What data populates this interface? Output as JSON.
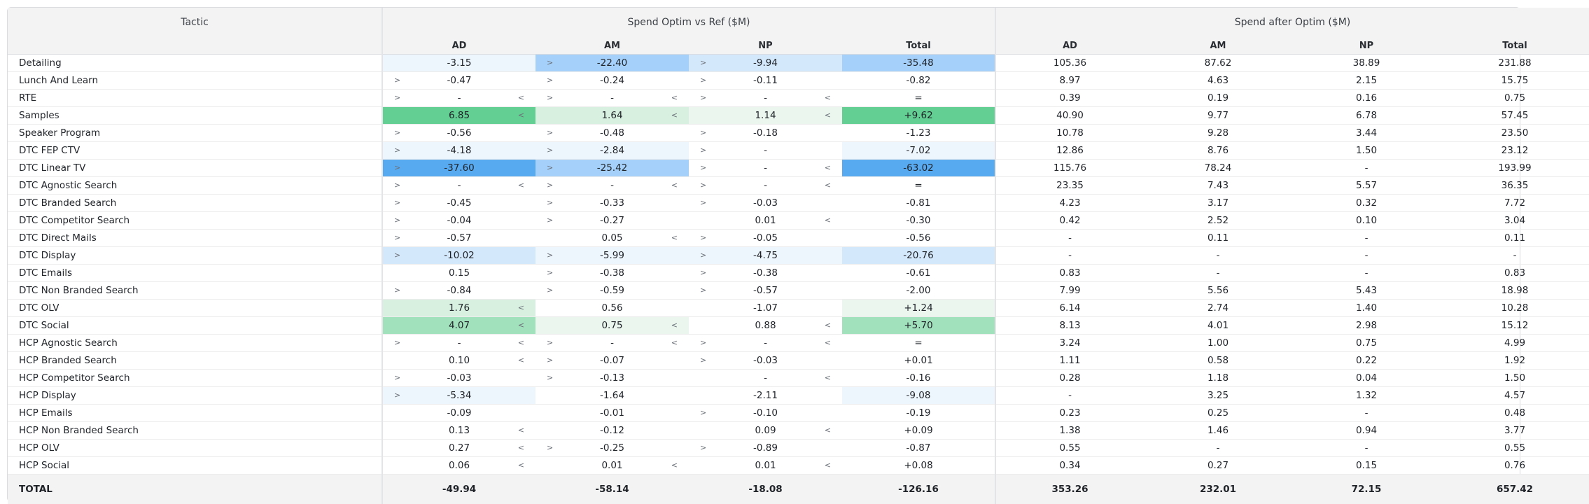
{
  "headers": {
    "tactic": "Tactic",
    "group1": "Spend Optim vs Ref ($M)",
    "group2": "Spend after Optim ($M)",
    "sub": [
      "AD",
      "AM",
      "NP",
      "Total"
    ]
  },
  "colors": {
    "blue_1": "#eef6fd",
    "blue_2": "#d4e8fb",
    "blue_3": "#a4d0fa",
    "blue_4": "#58aaf0",
    "green_1": "#eaf6ee",
    "green_2": "#d7f0df",
    "green_3": "#a1e1bc",
    "green_4": "#63cf93"
  },
  "rows": [
    {
      "tactic": "Detailing",
      "m": [
        [
          "-3.15",
          "",
          "",
          "b1"
        ],
        [
          "-22.40",
          ">",
          "",
          "b3"
        ],
        [
          "-9.94",
          ">",
          "",
          "b2"
        ],
        [
          "-35.48",
          "",
          "",
          "b3"
        ]
      ],
      "s": [
        "105.36",
        "87.62",
        "38.89",
        "231.88"
      ]
    },
    {
      "tactic": "Lunch And Learn",
      "m": [
        [
          "-0.47",
          ">",
          "",
          ""
        ],
        [
          "-0.24",
          ">",
          "",
          ""
        ],
        [
          "-0.11",
          ">",
          "",
          ""
        ],
        [
          "-0.82",
          "",
          "",
          ""
        ]
      ],
      "s": [
        "8.97",
        "4.63",
        "2.15",
        "15.75"
      ]
    },
    {
      "tactic": "RTE",
      "m": [
        [
          "-",
          ">",
          "<",
          ""
        ],
        [
          "-",
          ">",
          "<",
          ""
        ],
        [
          "-",
          ">",
          "<",
          ""
        ],
        [
          "=",
          "",
          "",
          ""
        ]
      ],
      "s": [
        "0.39",
        "0.19",
        "0.16",
        "0.75"
      ]
    },
    {
      "tactic": "Samples",
      "m": [
        [
          "6.85",
          "",
          "<",
          "g4"
        ],
        [
          "1.64",
          "",
          "<",
          "g2"
        ],
        [
          "1.14",
          "",
          "<",
          "g1"
        ],
        [
          "+9.62",
          "",
          "",
          "g4"
        ]
      ],
      "s": [
        "40.90",
        "9.77",
        "6.78",
        "57.45"
      ]
    },
    {
      "tactic": "Speaker Program",
      "m": [
        [
          "-0.56",
          ">",
          "",
          ""
        ],
        [
          "-0.48",
          ">",
          "",
          ""
        ],
        [
          "-0.18",
          ">",
          "",
          ""
        ],
        [
          "-1.23",
          "",
          "",
          ""
        ]
      ],
      "s": [
        "10.78",
        "9.28",
        "3.44",
        "23.50"
      ]
    },
    {
      "tactic": "DTC FEP CTV",
      "m": [
        [
          "-4.18",
          ">",
          "",
          "b1"
        ],
        [
          "-2.84",
          ">",
          "",
          "b1"
        ],
        [
          "-",
          ">",
          "",
          ""
        ],
        [
          "-7.02",
          "",
          "",
          "b1"
        ]
      ],
      "s": [
        "12.86",
        "8.76",
        "1.50",
        "23.12"
      ]
    },
    {
      "tactic": "DTC Linear TV",
      "m": [
        [
          "-37.60",
          ">",
          "",
          "b4"
        ],
        [
          "-25.42",
          ">",
          "",
          "b3"
        ],
        [
          "-",
          ">",
          "<",
          ""
        ],
        [
          "-63.02",
          "",
          "",
          "b4"
        ]
      ],
      "s": [
        "115.76",
        "78.24",
        "-",
        "193.99"
      ]
    },
    {
      "tactic": "DTC Agnostic Search",
      "m": [
        [
          "-",
          ">",
          "<",
          ""
        ],
        [
          "-",
          ">",
          "<",
          ""
        ],
        [
          "-",
          ">",
          "<",
          ""
        ],
        [
          "=",
          "",
          "",
          ""
        ]
      ],
      "s": [
        "23.35",
        "7.43",
        "5.57",
        "36.35"
      ]
    },
    {
      "tactic": "DTC Branded Search",
      "m": [
        [
          "-0.45",
          ">",
          "",
          ""
        ],
        [
          "-0.33",
          ">",
          "",
          ""
        ],
        [
          "-0.03",
          ">",
          "",
          ""
        ],
        [
          "-0.81",
          "",
          "",
          ""
        ]
      ],
      "s": [
        "4.23",
        "3.17",
        "0.32",
        "7.72"
      ]
    },
    {
      "tactic": "DTC Competitor Search",
      "m": [
        [
          "-0.04",
          ">",
          "",
          ""
        ],
        [
          "-0.27",
          ">",
          "",
          ""
        ],
        [
          "0.01",
          "",
          "<",
          ""
        ],
        [
          "-0.30",
          "",
          "",
          ""
        ]
      ],
      "s": [
        "0.42",
        "2.52",
        "0.10",
        "3.04"
      ]
    },
    {
      "tactic": "DTC Direct Mails",
      "m": [
        [
          "-0.57",
          ">",
          "",
          ""
        ],
        [
          "0.05",
          "",
          "<",
          ""
        ],
        [
          "-0.05",
          ">",
          "",
          ""
        ],
        [
          "-0.56",
          "",
          "",
          ""
        ]
      ],
      "s": [
        "-",
        "0.11",
        "-",
        "0.11"
      ]
    },
    {
      "tactic": "DTC Display",
      "m": [
        [
          "-10.02",
          ">",
          "",
          "b2"
        ],
        [
          "-5.99",
          ">",
          "",
          "b1"
        ],
        [
          "-4.75",
          ">",
          "",
          "b1"
        ],
        [
          "-20.76",
          "",
          "",
          "b2"
        ]
      ],
      "s": [
        "-",
        "-",
        "-",
        "-"
      ]
    },
    {
      "tactic": "DTC Emails",
      "m": [
        [
          "0.15",
          "",
          "",
          ""
        ],
        [
          "-0.38",
          ">",
          "",
          ""
        ],
        [
          "-0.38",
          ">",
          "",
          ""
        ],
        [
          "-0.61",
          "",
          "",
          ""
        ]
      ],
      "s": [
        "0.83",
        "-",
        "-",
        "0.83"
      ]
    },
    {
      "tactic": "DTC Non Branded Search",
      "m": [
        [
          "-0.84",
          ">",
          "",
          ""
        ],
        [
          "-0.59",
          ">",
          "",
          ""
        ],
        [
          "-0.57",
          ">",
          "",
          ""
        ],
        [
          "-2.00",
          "",
          "",
          ""
        ]
      ],
      "s": [
        "7.99",
        "5.56",
        "5.43",
        "18.98"
      ]
    },
    {
      "tactic": "DTC OLV",
      "m": [
        [
          "1.76",
          "",
          "<",
          "g2"
        ],
        [
          "0.56",
          "",
          "",
          ""
        ],
        [
          "-1.07",
          "",
          "",
          ""
        ],
        [
          "+1.24",
          "",
          "",
          "g1"
        ]
      ],
      "s": [
        "6.14",
        "2.74",
        "1.40",
        "10.28"
      ]
    },
    {
      "tactic": "DTC Social",
      "m": [
        [
          "4.07",
          "",
          "<",
          "g3"
        ],
        [
          "0.75",
          "",
          "<",
          "g1"
        ],
        [
          "0.88",
          "",
          "<",
          ""
        ],
        [
          "+5.70",
          "",
          "",
          "g3"
        ]
      ],
      "s": [
        "8.13",
        "4.01",
        "2.98",
        "15.12"
      ]
    },
    {
      "tactic": "HCP Agnostic Search",
      "m": [
        [
          "-",
          ">",
          "<",
          ""
        ],
        [
          "-",
          ">",
          "<",
          ""
        ],
        [
          "-",
          ">",
          "<",
          ""
        ],
        [
          "=",
          "",
          "",
          ""
        ]
      ],
      "s": [
        "3.24",
        "1.00",
        "0.75",
        "4.99"
      ]
    },
    {
      "tactic": "HCP Branded Search",
      "m": [
        [
          "0.10",
          "",
          "<",
          ""
        ],
        [
          "-0.07",
          ">",
          "",
          ""
        ],
        [
          "-0.03",
          ">",
          "",
          ""
        ],
        [
          "+0.01",
          "",
          "",
          ""
        ]
      ],
      "s": [
        "1.11",
        "0.58",
        "0.22",
        "1.92"
      ]
    },
    {
      "tactic": "HCP Competitor Search",
      "m": [
        [
          "-0.03",
          ">",
          "",
          ""
        ],
        [
          "-0.13",
          ">",
          "",
          ""
        ],
        [
          "-",
          "",
          "<",
          ""
        ],
        [
          "-0.16",
          "",
          "",
          ""
        ]
      ],
      "s": [
        "0.28",
        "1.18",
        "0.04",
        "1.50"
      ]
    },
    {
      "tactic": "HCP Display",
      "m": [
        [
          "-5.34",
          ">",
          "",
          "b1"
        ],
        [
          "-1.64",
          "",
          "",
          ""
        ],
        [
          "-2.11",
          "",
          "",
          ""
        ],
        [
          "-9.08",
          "",
          "",
          "b1"
        ]
      ],
      "s": [
        "-",
        "3.25",
        "1.32",
        "4.57"
      ]
    },
    {
      "tactic": "HCP Emails",
      "m": [
        [
          "-0.09",
          "",
          "",
          ""
        ],
        [
          "-0.01",
          "",
          "",
          ""
        ],
        [
          "-0.10",
          ">",
          "",
          ""
        ],
        [
          "-0.19",
          "",
          "",
          ""
        ]
      ],
      "s": [
        "0.23",
        "0.25",
        "-",
        "0.48"
      ]
    },
    {
      "tactic": "HCP Non Branded Search",
      "m": [
        [
          "0.13",
          "",
          "<",
          ""
        ],
        [
          "-0.12",
          "",
          "",
          ""
        ],
        [
          "0.09",
          "",
          "<",
          ""
        ],
        [
          "+0.09",
          "",
          "",
          ""
        ]
      ],
      "s": [
        "1.38",
        "1.46",
        "0.94",
        "3.77"
      ]
    },
    {
      "tactic": "HCP OLV",
      "m": [
        [
          "0.27",
          "",
          "<",
          ""
        ],
        [
          "-0.25",
          ">",
          "",
          ""
        ],
        [
          "-0.89",
          ">",
          "",
          ""
        ],
        [
          "-0.87",
          "",
          "",
          ""
        ]
      ],
      "s": [
        "0.55",
        "-",
        "-",
        "0.55"
      ]
    },
    {
      "tactic": "HCP Social",
      "m": [
        [
          "0.06",
          "",
          "<",
          ""
        ],
        [
          "0.01",
          "",
          "<",
          ""
        ],
        [
          "0.01",
          "",
          "<",
          ""
        ],
        [
          "+0.08",
          "",
          "",
          ""
        ]
      ],
      "s": [
        "0.34",
        "0.27",
        "0.15",
        "0.76"
      ]
    }
  ],
  "total": {
    "label": "TOTAL",
    "m": [
      "-49.94",
      "-58.14",
      "-18.08",
      "-126.16"
    ],
    "s": [
      "353.26",
      "232.01",
      "72.15",
      "657.42"
    ]
  }
}
